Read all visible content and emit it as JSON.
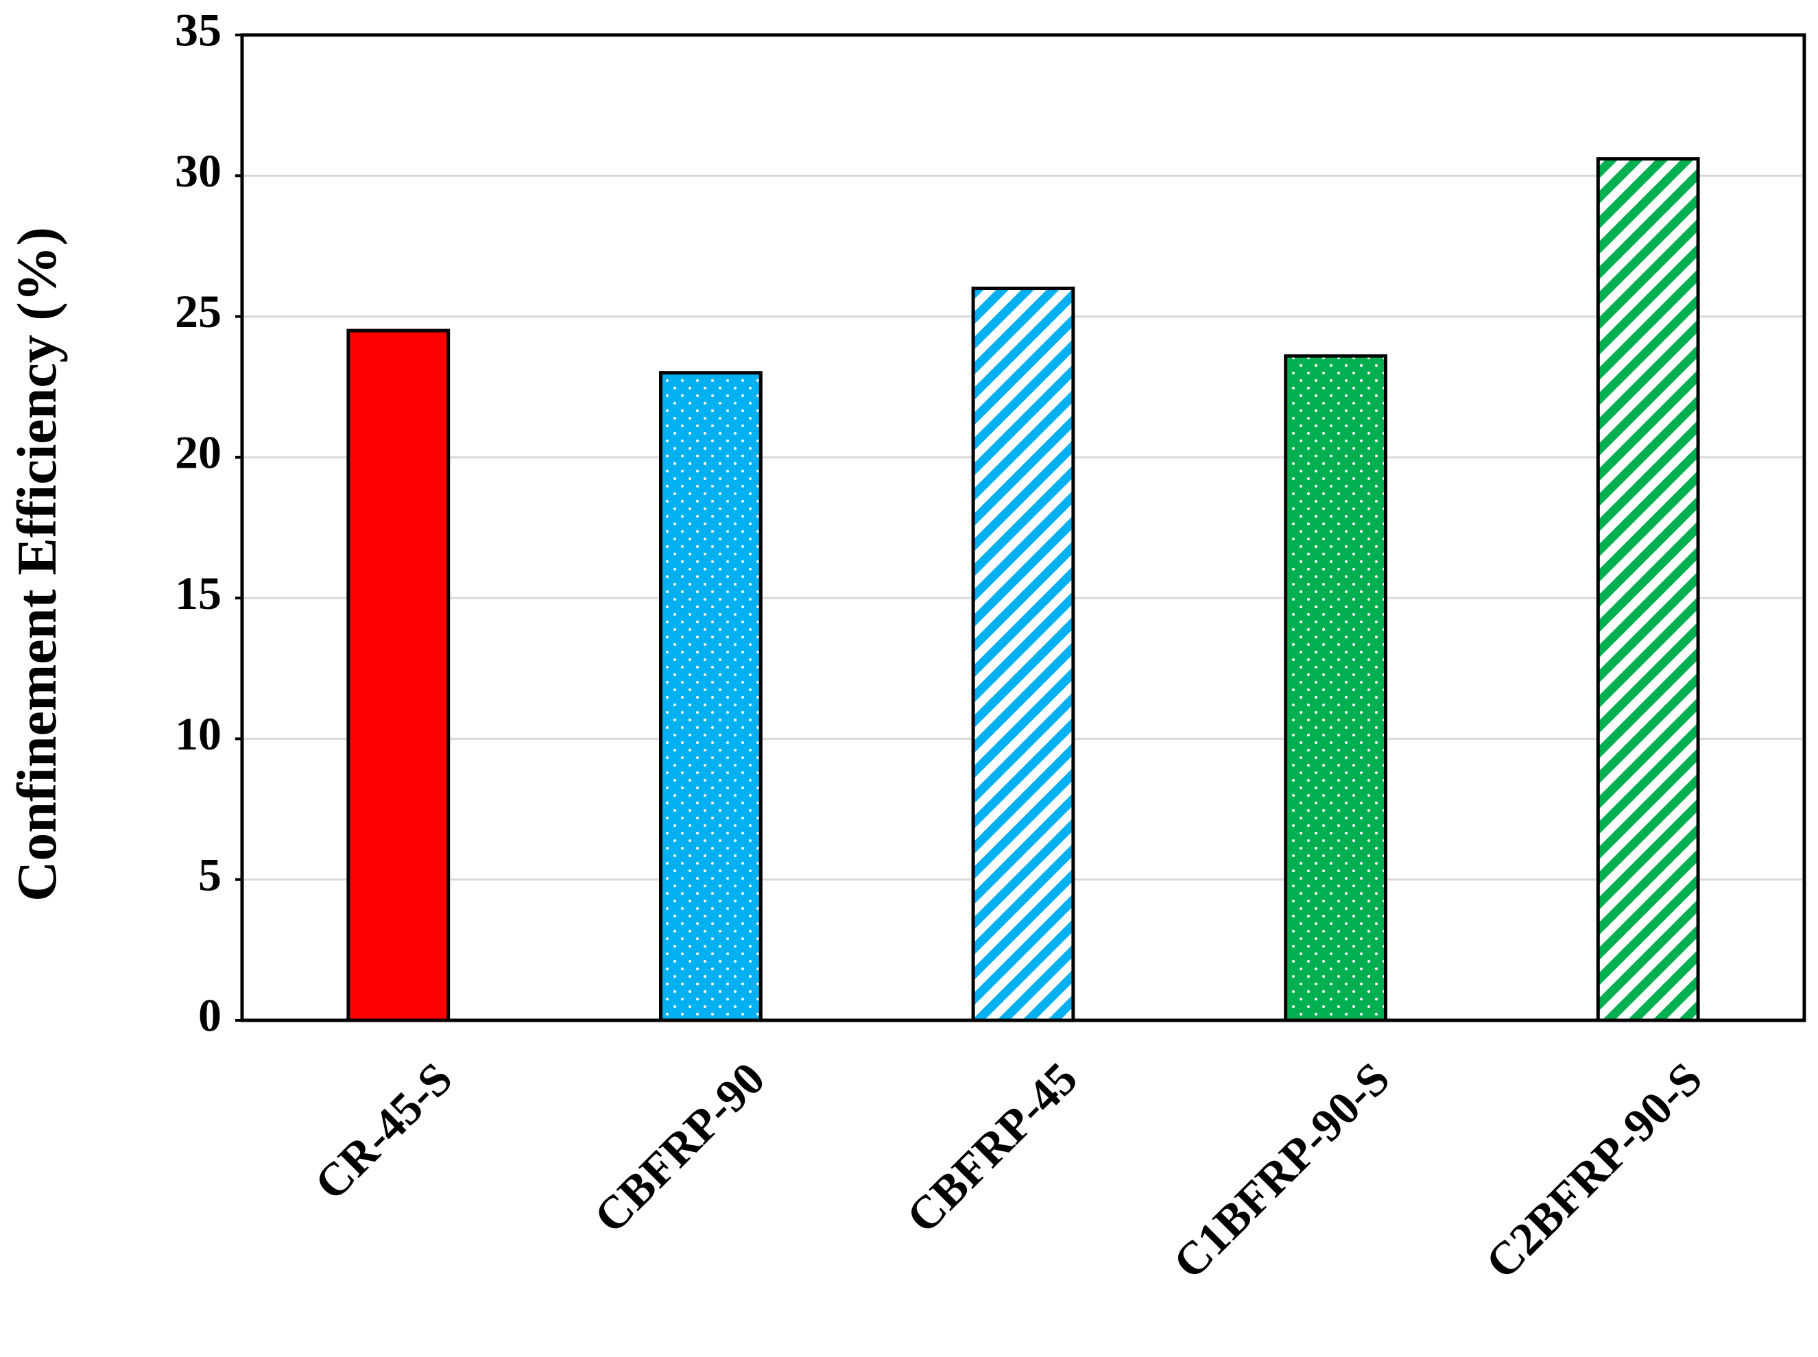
{
  "chart_data": {
    "type": "bar",
    "y_label": "Confinement Efficiency (%)",
    "categories": [
      "CR-45-S",
      "CBFRP-90",
      "CBFRP-45",
      "C1BFRP-90-S",
      "C2BFRP-90-S"
    ],
    "values": [
      24.5,
      23.0,
      26.0,
      23.6,
      30.6
    ],
    "colors": [
      "#ff0000",
      "#00b0f0",
      "#00b0f0",
      "#00b050",
      "#00b050"
    ],
    "patterns": [
      "solid",
      "dots",
      "stripes",
      "dots",
      "stripes"
    ],
    "ylim": [
      0,
      35
    ],
    "yticks": [
      0,
      5,
      10,
      15,
      20,
      25,
      30,
      35
    ],
    "grid": true
  }
}
